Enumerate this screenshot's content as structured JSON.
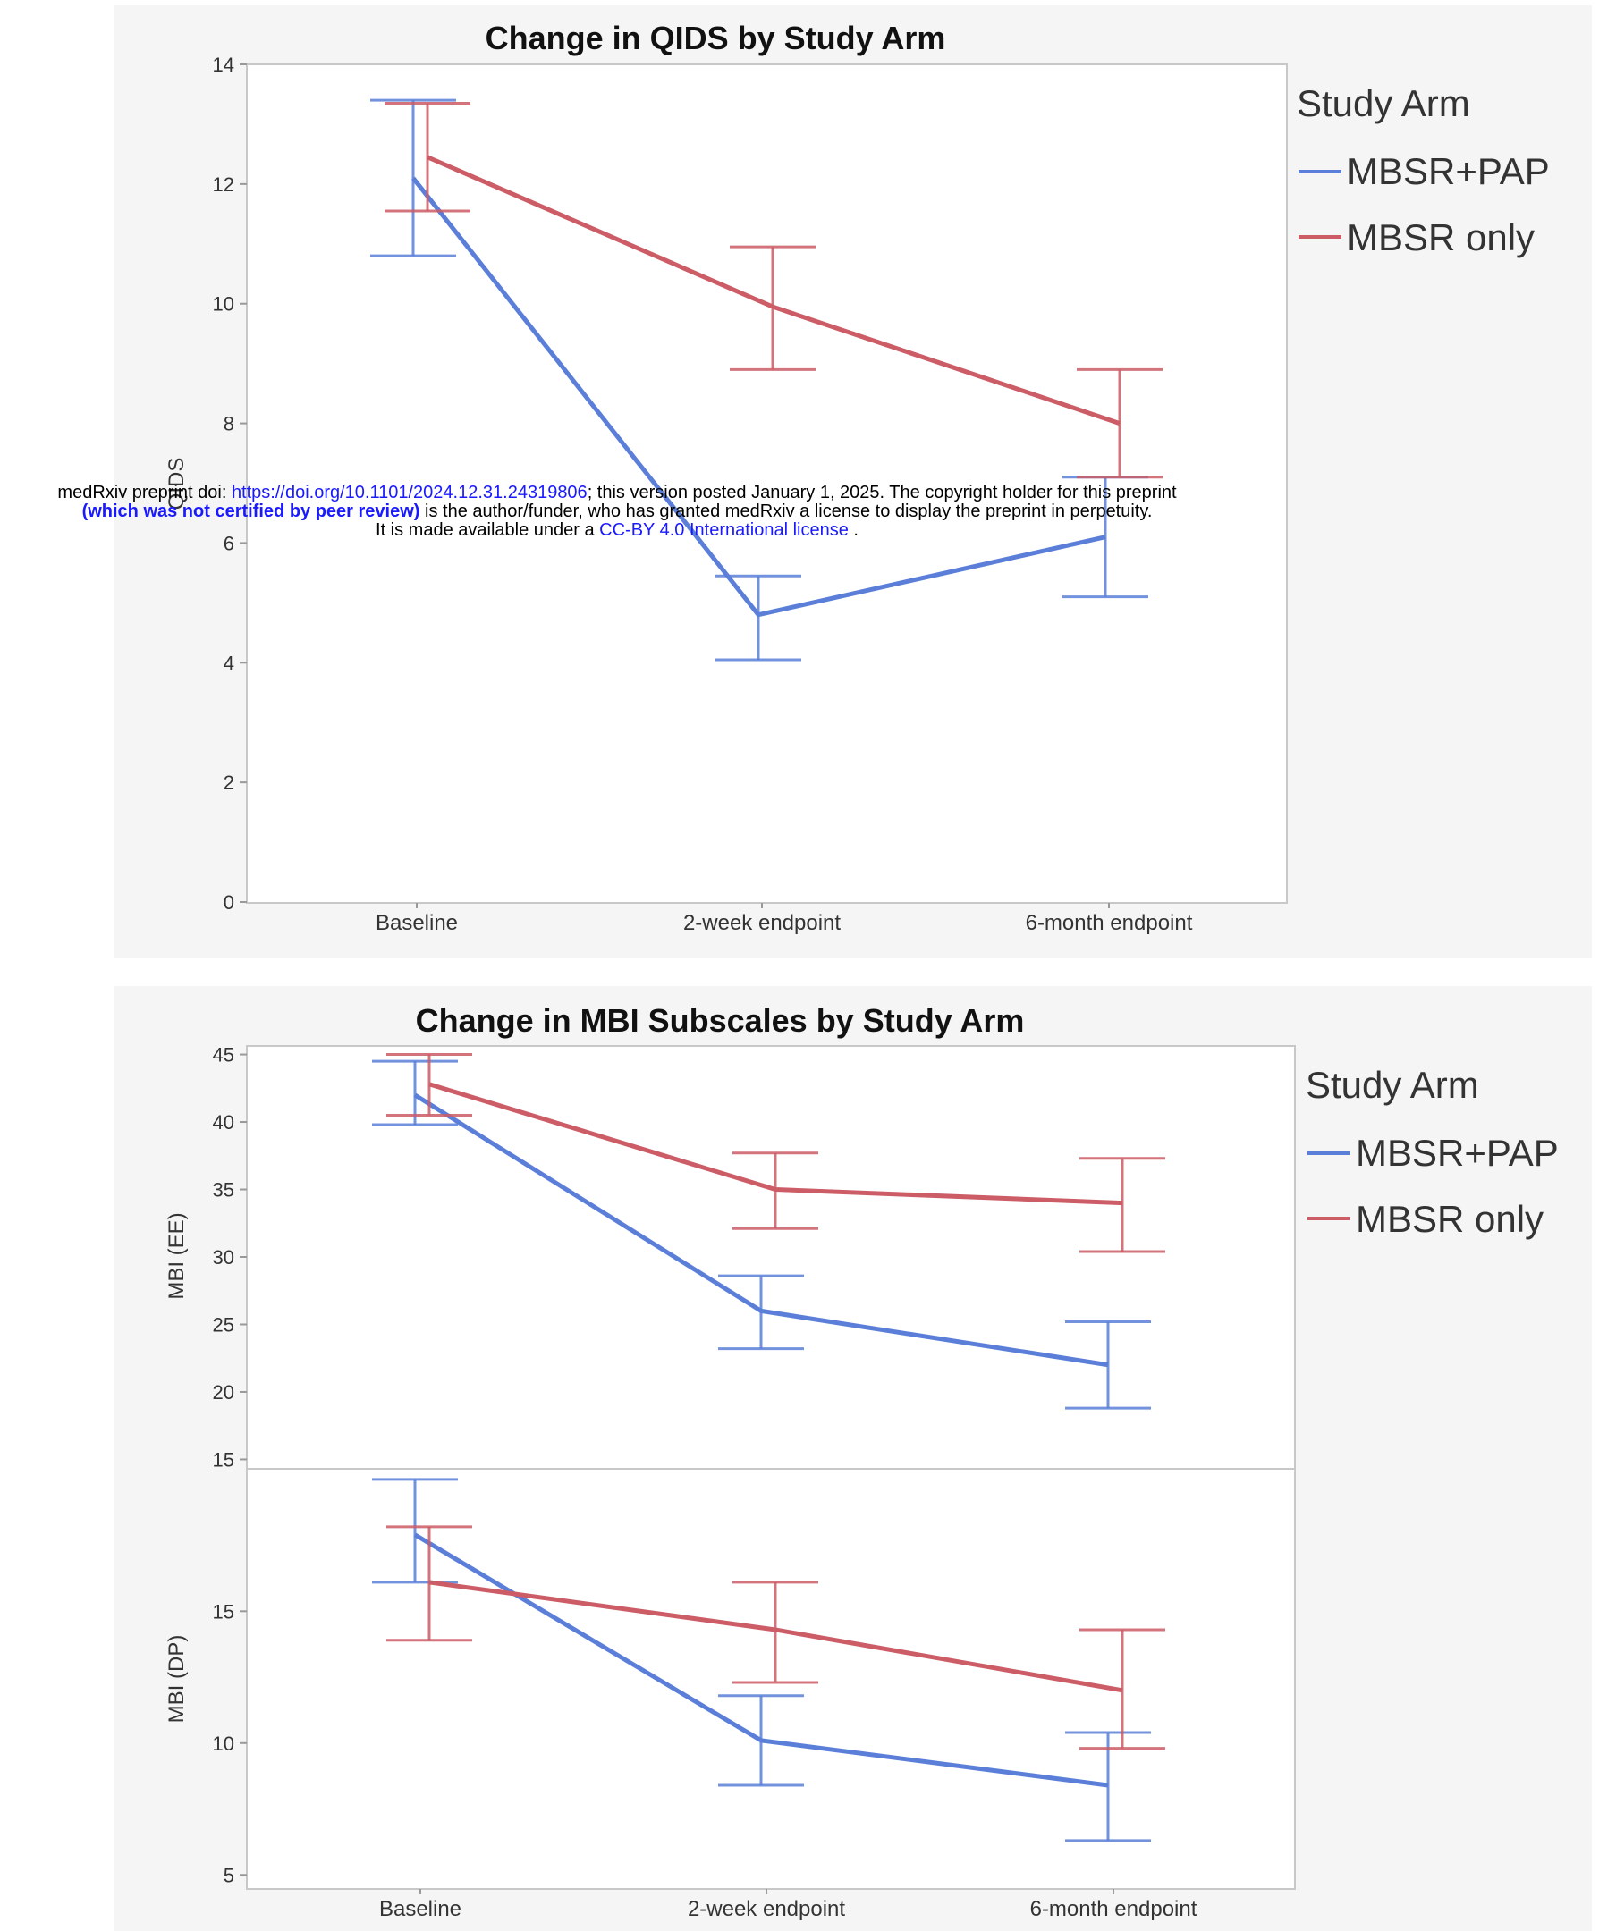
{
  "banner": {
    "line1_prefix": "medRxiv preprint doi: ",
    "line1_link": "https://doi.org/10.1101/2024.12.31.24319806",
    "line1_suffix": "; this version posted January 1, 2025. The copyright holder for this preprint",
    "line2_bold": "(which was not certified by peer review)",
    "line2_suffix": " is the author/funder, who has granted medRxiv a license to display the preprint in perpetuity.",
    "line3_prefix": "It is made available under a ",
    "line3_link": "CC-BY 4.0 International license",
    "line3_suffix": " ."
  },
  "colors": {
    "mbsr_pap": "#5b7fd9",
    "mbsr_only": "#cc5c66",
    "panel_bg": "#f5f5f5",
    "frame": "#c8c8c8"
  },
  "chart_data": [
    {
      "type": "line",
      "title": "Change in QIDS by Study Arm",
      "ylabel": "QIDS",
      "xlabel": "",
      "categories": [
        "Baseline",
        "2-week endpoint",
        "6-month endpoint"
      ],
      "ylim": [
        0,
        14
      ],
      "yticks": [
        0,
        2,
        4,
        6,
        8,
        10,
        12,
        14
      ],
      "legend": {
        "title": "Study Arm",
        "placement": "right"
      },
      "series": [
        {
          "name": "MBSR+PAP",
          "color": "#5b7fd9",
          "values": [
            12.1,
            4.8,
            6.1
          ],
          "lower": [
            10.8,
            4.05,
            5.1
          ],
          "upper": [
            13.4,
            5.45,
            7.1
          ]
        },
        {
          "name": "MBSR only",
          "color": "#cc5c66",
          "values": [
            12.45,
            9.95,
            8.0
          ],
          "lower": [
            11.55,
            8.9,
            7.1
          ],
          "upper": [
            13.35,
            10.95,
            8.9
          ]
        }
      ]
    },
    {
      "type": "line",
      "title": "Change in MBI Subscales by Study Arm",
      "xlabel": "",
      "categories": [
        "Baseline",
        "2-week endpoint",
        "6-month endpoint"
      ],
      "legend": {
        "title": "Study Arm",
        "placement": "right"
      },
      "subplots": [
        {
          "ylabel": "MBI (EE)",
          "ylim": [
            14.5,
            45.5
          ],
          "yticks": [
            15,
            20,
            25,
            30,
            35,
            40,
            45
          ],
          "series": [
            {
              "name": "MBSR+PAP",
              "color": "#5b7fd9",
              "values": [
                42,
                26,
                22
              ],
              "lower": [
                39.8,
                23.2,
                18.8
              ],
              "upper": [
                44.5,
                28.6,
                25.2
              ]
            },
            {
              "name": "MBSR only",
              "color": "#cc5c66",
              "values": [
                42.8,
                35,
                34
              ],
              "lower": [
                40.5,
                32.1,
                30.4
              ],
              "upper": [
                45,
                37.7,
                37.3
              ]
            }
          ]
        },
        {
          "ylabel": "MBI (DP)",
          "ylim": [
            4.5,
            20.3
          ],
          "yticks": [
            5,
            10,
            15
          ],
          "series": [
            {
              "name": "MBSR+PAP",
              "color": "#5b7fd9",
              "values": [
                17.9,
                10.1,
                8.4
              ],
              "lower": [
                16.1,
                8.4,
                6.3
              ],
              "upper": [
                20,
                11.8,
                10.4
              ]
            },
            {
              "name": "MBSR only",
              "color": "#cc5c66",
              "values": [
                16.1,
                14.3,
                12
              ],
              "lower": [
                13.9,
                12.3,
                9.8
              ],
              "upper": [
                18.2,
                16.1,
                14.3
              ]
            }
          ]
        }
      ]
    }
  ]
}
